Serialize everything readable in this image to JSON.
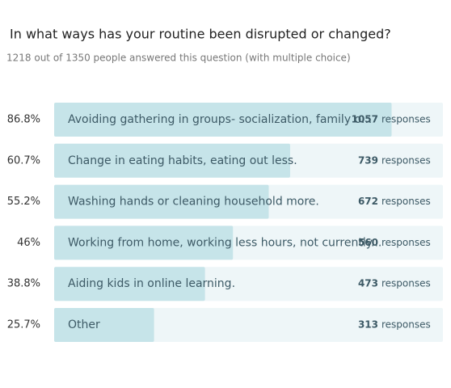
{
  "chart_data": {
    "type": "bar",
    "title": "In what ways has your routine been disrupted or changed?",
    "subtitle": "1218 out of 1350 people answered this question (with multiple choice)",
    "categories": [
      "Avoiding gathering in groups- socialization, family o...",
      "Change in eating habits, eating out less.",
      "Washing hands or cleaning household more.",
      "Working from home, working less hours, not currently...",
      "Aiding kids in online learning.",
      "Other"
    ],
    "values": [
      86.8,
      60.7,
      55.2,
      46,
      38.8,
      25.7
    ],
    "value_labels": [
      "86.8%",
      "60.7%",
      "55.2%",
      "46%",
      "38.8%",
      "25.7%"
    ],
    "counts": [
      1057,
      739,
      672,
      560,
      473,
      313
    ],
    "count_unit": "responses",
    "xlim": [
      0,
      100
    ],
    "color": "#c6e4e9",
    "track_color": "#eef6f8"
  }
}
